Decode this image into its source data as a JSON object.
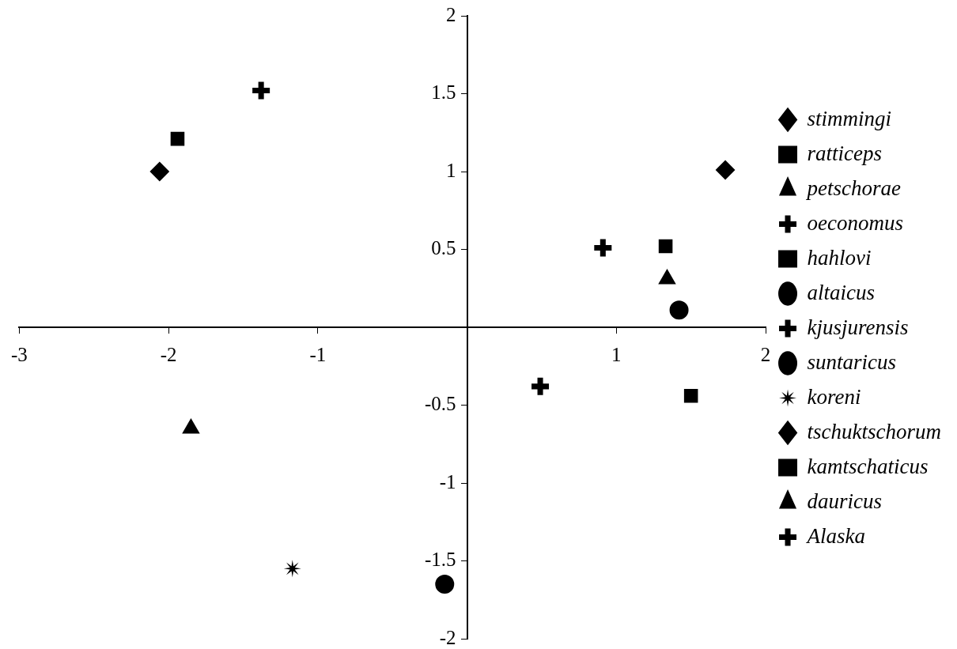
{
  "chart_data": {
    "type": "scatter",
    "xlim": [
      -3,
      2
    ],
    "ylim": [
      -2,
      2
    ],
    "xticks": [
      -3,
      -2,
      -1,
      {
        "value": 0,
        "label": null
      },
      1,
      2
    ],
    "yticks": [
      -2,
      -1.5,
      -1,
      -0.5,
      {
        "value": 0,
        "label": null
      },
      0.5,
      1,
      1.5,
      2
    ],
    "grid": false,
    "legend": "right",
    "series": [
      {
        "name": "stimmingi",
        "color": "#000000",
        "marker": "diamond",
        "x": [
          1.73
        ],
        "values": [
          1.01
        ]
      },
      {
        "name": "ratticeps",
        "color": "#000000",
        "marker": "square",
        "x": [
          1.33
        ],
        "values": [
          0.52
        ]
      },
      {
        "name": "petschorae",
        "color": "#000000",
        "marker": "triangle",
        "x": [
          1.34
        ],
        "values": [
          0.31
        ]
      },
      {
        "name": "oeconomus",
        "color": "#000000",
        "marker": "cross",
        "x": [
          0.91
        ],
        "values": [
          0.51
        ]
      },
      {
        "name": "hahlovi",
        "color": "#000000",
        "marker": "square",
        "x": [
          1.5
        ],
        "values": [
          -0.44
        ]
      },
      {
        "name": "altaicus",
        "color": "#000000",
        "marker": "circle",
        "x": [
          1.42
        ],
        "values": [
          0.11
        ]
      },
      {
        "name": "kjusjurensis",
        "color": "#000000",
        "marker": "cross",
        "x": [
          0.49
        ],
        "values": [
          -0.38
        ]
      },
      {
        "name": "suntaricus",
        "color": "#000000",
        "marker": "circle",
        "x": [
          -0.15
        ],
        "values": [
          -1.65
        ]
      },
      {
        "name": "koreni",
        "color": "#000000",
        "marker": "star",
        "x": [
          -1.17
        ],
        "values": [
          -1.55
        ]
      },
      {
        "name": "tschuktschorum",
        "color": "#000000",
        "marker": "diamond",
        "x": [
          -2.06
        ],
        "values": [
          1.0
        ]
      },
      {
        "name": "kamtschaticus",
        "color": "#000000",
        "marker": "square",
        "x": [
          -1.94
        ],
        "values": [
          1.21
        ]
      },
      {
        "name": "dauricus",
        "color": "#000000",
        "marker": "triangle",
        "x": [
          -1.85
        ],
        "values": [
          -0.65
        ]
      },
      {
        "name": "Alaska",
        "color": "#000000",
        "marker": "cross",
        "x": [
          -1.38
        ],
        "values": [
          1.52
        ]
      }
    ]
  }
}
